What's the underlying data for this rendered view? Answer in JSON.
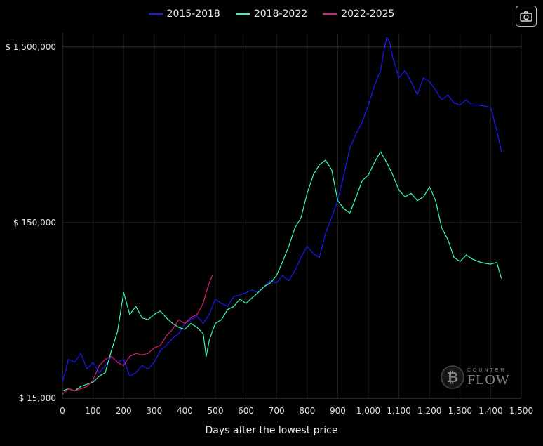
{
  "chart_data": {
    "type": "line",
    "title": "",
    "xlabel": "Days after the lowest price",
    "ylabel": "",
    "y_scale": "log",
    "xlim": [
      0,
      1500
    ],
    "ylim": [
      15000,
      1800000
    ],
    "grid": true,
    "legend_position": "top-center",
    "x_ticks": [
      0,
      100,
      200,
      300,
      400,
      500,
      600,
      700,
      800,
      900,
      1000,
      1100,
      1200,
      1300,
      1400,
      1500
    ],
    "x_tick_labels": [
      "0",
      "100",
      "200",
      "300",
      "400",
      "500",
      "600",
      "700",
      "800",
      "900",
      "1,000",
      "1,100",
      "1,200",
      "1,300",
      "1,400",
      "1,500"
    ],
    "y_ticks": [
      15000,
      150000,
      1500000
    ],
    "y_tick_labels": [
      "$ 15,000",
      "$ 150,000",
      "$ 1,500,000"
    ],
    "series": [
      {
        "name": "2015-2018",
        "color": "#1a1aff",
        "x": [
          0,
          20,
          40,
          60,
          80,
          100,
          120,
          140,
          160,
          180,
          200,
          220,
          240,
          260,
          280,
          300,
          320,
          340,
          360,
          380,
          400,
          420,
          440,
          460,
          480,
          500,
          520,
          540,
          560,
          580,
          600,
          620,
          640,
          660,
          680,
          700,
          720,
          740,
          760,
          780,
          800,
          820,
          840,
          860,
          880,
          900,
          920,
          940,
          960,
          980,
          1000,
          1020,
          1040,
          1050,
          1060,
          1070,
          1080,
          1100,
          1120,
          1140,
          1160,
          1180,
          1200,
          1220,
          1240,
          1260,
          1280,
          1300,
          1320,
          1340,
          1360,
          1380,
          1400,
          1420,
          1435
        ],
        "y": [
          18500,
          25000,
          24000,
          27000,
          22000,
          24000,
          21000,
          23000,
          26000,
          24000,
          25000,
          20000,
          21000,
          23000,
          22000,
          24000,
          28000,
          30000,
          33000,
          35000,
          40000,
          42000,
          44000,
          40000,
          45000,
          55000,
          52000,
          50000,
          57000,
          58000,
          60000,
          62000,
          60000,
          65000,
          70000,
          68000,
          75000,
          70000,
          80000,
          95000,
          110000,
          100000,
          95000,
          130000,
          160000,
          200000,
          280000,
          400000,
          480000,
          560000,
          700000,
          900000,
          1100000,
          1400000,
          1700000,
          1600000,
          1300000,
          1000000,
          1100000,
          950000,
          800000,
          1000000,
          950000,
          850000,
          750000,
          800000,
          720000,
          700000,
          750000,
          700000,
          700000,
          690000,
          680000,
          500000,
          380000
        ]
      },
      {
        "name": "2018-2022",
        "color": "#33ffaa",
        "x": [
          0,
          20,
          40,
          60,
          80,
          100,
          120,
          140,
          160,
          180,
          200,
          220,
          240,
          260,
          280,
          300,
          320,
          340,
          360,
          380,
          400,
          420,
          440,
          460,
          470,
          480,
          490,
          500,
          520,
          540,
          560,
          580,
          600,
          620,
          640,
          660,
          680,
          700,
          720,
          740,
          760,
          780,
          800,
          820,
          840,
          860,
          880,
          900,
          920,
          940,
          960,
          980,
          1000,
          1020,
          1040,
          1060,
          1080,
          1100,
          1120,
          1140,
          1160,
          1180,
          1200,
          1220,
          1240,
          1260,
          1280,
          1300,
          1320,
          1340,
          1360,
          1380,
          1400,
          1420,
          1435
        ],
        "y": [
          16500,
          17000,
          16500,
          17500,
          18000,
          18500,
          20000,
          21000,
          28000,
          36000,
          60000,
          45000,
          50000,
          43000,
          42000,
          45000,
          47000,
          43000,
          40000,
          38000,
          37000,
          40000,
          38000,
          35000,
          26000,
          32000,
          36000,
          40000,
          42000,
          48000,
          50000,
          55000,
          52000,
          56000,
          60000,
          65000,
          68000,
          75000,
          90000,
          110000,
          140000,
          160000,
          220000,
          280000,
          320000,
          340000,
          300000,
          200000,
          180000,
          170000,
          210000,
          260000,
          280000,
          330000,
          380000,
          330000,
          280000,
          230000,
          210000,
          220000,
          200000,
          210000,
          240000,
          200000,
          140000,
          120000,
          95000,
          90000,
          98000,
          93000,
          90000,
          88000,
          87000,
          89000,
          72000
        ]
      },
      {
        "name": "2022-2025",
        "color": "#e0197c",
        "x": [
          0,
          20,
          40,
          60,
          80,
          100,
          120,
          140,
          160,
          180,
          200,
          220,
          240,
          260,
          280,
          300,
          320,
          340,
          360,
          380,
          400,
          420,
          440,
          460,
          470,
          480,
          490
        ],
        "y": [
          15800,
          17000,
          16500,
          17000,
          17500,
          19000,
          23000,
          25000,
          26000,
          24000,
          23000,
          26000,
          27000,
          26500,
          27000,
          29000,
          30000,
          34000,
          37000,
          42000,
          40000,
          43000,
          45000,
          52000,
          60000,
          68000,
          75000
        ]
      }
    ]
  },
  "legend": {
    "items": [
      {
        "label": "2015-2018",
        "color": "#1a1aff"
      },
      {
        "label": "2018-2022",
        "color": "#33ffaa"
      },
      {
        "label": "2022-2025",
        "color": "#e0197c"
      }
    ]
  },
  "watermark": {
    "small": "COUNTER",
    "big": "FLOW",
    "symbol": "₿"
  },
  "toolbar": {
    "camera_icon": "camera-icon"
  }
}
